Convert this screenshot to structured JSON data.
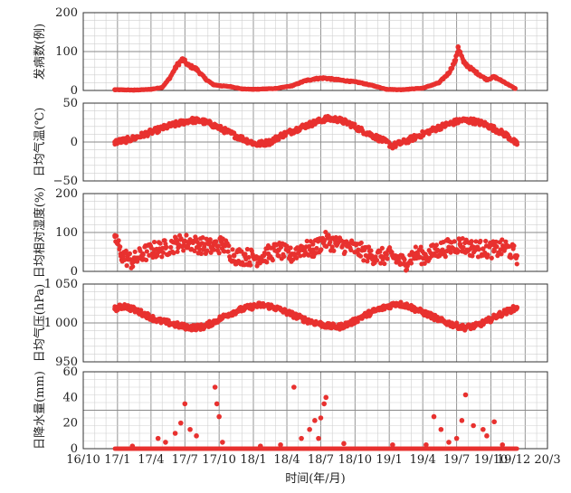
{
  "chart_data": {
    "type": "scatter",
    "xlabel": "时间(年/月)",
    "x_ticks": [
      "16/10",
      "17/1",
      "17/4",
      "17/7",
      "17/10",
      "18/1",
      "18/4",
      "18/7",
      "18/10",
      "19/1",
      "19/4",
      "19/7",
      "19/10",
      "19/12",
      "20/3"
    ],
    "xlim": [
      "2016-10-01",
      "2020-03-01"
    ],
    "point_color": "#e8312f",
    "grid": true,
    "panels": [
      {
        "ylabel": "发病数(例)",
        "ylim": [
          0,
          200
        ],
        "yticks": [
          "0",
          "100",
          "200"
        ],
        "ytick_values": [
          0,
          100,
          200
        ],
        "series": [
          {
            "x": [
              "2016-12-25",
              "2017-02-15",
              "2017-04-01",
              "2017-05-01",
              "2017-05-20",
              "2017-06-10",
              "2017-06-25",
              "2017-07-10",
              "2017-08-01",
              "2017-08-25",
              "2017-09-15",
              "2017-10-05",
              "2017-11-01",
              "2017-12-01",
              "2018-01-01",
              "2018-03-01",
              "2018-04-15",
              "2018-05-20",
              "2018-06-15",
              "2018-07-10",
              "2018-08-10",
              "2018-09-15",
              "2018-10-15",
              "2018-11-20",
              "2018-12-25",
              "2019-02-01",
              "2019-04-01",
              "2019-05-15",
              "2019-06-10",
              "2019-06-28",
              "2019-07-05",
              "2019-07-20",
              "2019-08-10",
              "2019-09-01",
              "2019-09-20",
              "2019-10-10",
              "2019-11-05",
              "2019-12-05"
            ],
            "y": [
              2,
              1,
              3,
              8,
              30,
              65,
              80,
              65,
              55,
              30,
              15,
              12,
              10,
              4,
              3,
              5,
              12,
              25,
              30,
              32,
              28,
              24,
              20,
              12,
              3,
              2,
              6,
              20,
              45,
              78,
              112,
              72,
              55,
              40,
              28,
              35,
              22,
              5
            ]
          }
        ]
      },
      {
        "ylabel": "日均气温(℃)",
        "ylim": [
          -50,
          50
        ],
        "yticks": [
          "50",
          "0",
          "−50"
        ],
        "ytick_values": [
          50,
          0,
          -50
        ],
        "series": [
          {
            "x": [
              "2016-12-25",
              "2017-01-20",
              "2017-02-15",
              "2017-03-15",
              "2017-04-15",
              "2017-05-15",
              "2017-06-15",
              "2017-07-15",
              "2017-08-15",
              "2017-09-15",
              "2017-10-15",
              "2017-11-15",
              "2017-12-15",
              "2018-01-10",
              "2018-02-15",
              "2018-03-15",
              "2018-04-15",
              "2018-05-15",
              "2018-06-15",
              "2018-07-15",
              "2018-08-15",
              "2018-09-15",
              "2018-10-15",
              "2018-11-15",
              "2018-12-15",
              "2019-01-10",
              "2019-02-15",
              "2019-03-15",
              "2019-04-15",
              "2019-05-15",
              "2019-06-15",
              "2019-07-15",
              "2019-08-15",
              "2019-09-15",
              "2019-10-15",
              "2019-11-15",
              "2019-12-10"
            ],
            "y": [
              0,
              2,
              5,
              10,
              15,
              20,
              24,
              28,
              27,
              22,
              15,
              8,
              2,
              -3,
              0,
              8,
              14,
              20,
              25,
              30,
              29,
              24,
              16,
              9,
              2,
              -5,
              1,
              7,
              13,
              19,
              24,
              28,
              27,
              23,
              16,
              8,
              -3
            ]
          }
        ]
      },
      {
        "ylabel": "日均相对湿度(%)",
        "ylim": [
          0,
          200
        ],
        "yticks": [
          "0",
          "100",
          "200"
        ],
        "ytick_values": [
          0,
          100,
          200
        ],
        "series": [
          {
            "x": [
              "2016-12-25",
              "2017-01-10",
              "2017-02-10",
              "2017-03-10",
              "2017-04-10",
              "2017-05-10",
              "2017-06-10",
              "2017-07-10",
              "2017-08-10",
              "2017-09-10",
              "2017-10-10",
              "2017-11-10",
              "2017-12-10",
              "2018-01-10",
              "2018-02-10",
              "2018-03-10",
              "2018-04-10",
              "2018-05-10",
              "2018-06-10",
              "2018-07-10",
              "2018-08-10",
              "2018-09-10",
              "2018-10-10",
              "2018-11-10",
              "2018-12-10",
              "2019-01-10",
              "2019-02-10",
              "2019-03-10",
              "2019-04-10",
              "2019-05-10",
              "2019-06-10",
              "2019-07-10",
              "2019-08-10",
              "2019-09-10",
              "2019-10-10",
              "2019-11-10",
              "2019-12-10"
            ],
            "y": [
              92,
              45,
              25,
              45,
              55,
              60,
              72,
              75,
              68,
              62,
              70,
              40,
              38,
              35,
              45,
              55,
              40,
              60,
              55,
              80,
              72,
              65,
              55,
              42,
              38,
              40,
              20,
              45,
              38,
              55,
              62,
              70,
              60,
              58,
              55,
              62,
              40
            ]
          }
        ]
      },
      {
        "ylabel": "日均气压(hPa)",
        "ylim": [
          950,
          1050
        ],
        "yticks": [
          "950",
          "1 000",
          "1 050"
        ],
        "ytick_values": [
          950,
          1000,
          1050
        ],
        "series": [
          {
            "x": [
              "2016-12-25",
              "2017-01-20",
              "2017-02-20",
              "2017-03-20",
              "2017-04-20",
              "2017-05-20",
              "2017-06-20",
              "2017-07-20",
              "2017-08-20",
              "2017-09-20",
              "2017-10-20",
              "2017-11-20",
              "2017-12-20",
              "2018-01-20",
              "2018-02-20",
              "2018-03-20",
              "2018-04-20",
              "2018-05-20",
              "2018-06-20",
              "2018-07-20",
              "2018-08-20",
              "2018-09-20",
              "2018-10-20",
              "2018-11-20",
              "2018-12-20",
              "2019-01-20",
              "2019-02-20",
              "2019-03-20",
              "2019-04-20",
              "2019-05-20",
              "2019-06-20",
              "2019-07-20",
              "2019-08-20",
              "2019-09-20",
              "2019-10-20",
              "2019-11-20",
              "2019-12-10"
            ],
            "y": [
              1018,
              1022,
              1016,
              1010,
              1003,
              1000,
              996,
              994,
              995,
              1002,
              1010,
              1016,
              1020,
              1023,
              1021,
              1016,
              1010,
              1004,
              1000,
              996,
              995,
              1000,
              1008,
              1015,
              1020,
              1025,
              1022,
              1016,
              1010,
              1003,
              998,
              994,
              996,
              1002,
              1010,
              1016,
              1020
            ]
          }
        ]
      },
      {
        "ylabel": "日降水量(mm)",
        "ylim": [
          0,
          60
        ],
        "yticks": [
          "0",
          "20",
          "40",
          "60"
        ],
        "ytick_values": [
          0,
          20,
          40,
          60
        ],
        "series": [
          {
            "x": [
              "2017-02-10",
              "2017-04-20",
              "2017-05-10",
              "2017-06-05",
              "2017-06-20",
              "2017-07-01",
              "2017-07-15",
              "2017-08-01",
              "2017-09-20",
              "2017-09-25",
              "2017-10-01",
              "2017-10-10",
              "2018-01-20",
              "2018-03-15",
              "2018-04-20",
              "2018-05-10",
              "2018-06-01",
              "2018-06-15",
              "2018-06-25",
              "2018-07-01",
              "2018-07-10",
              "2018-07-15",
              "2018-09-01",
              "2019-01-10",
              "2019-04-10",
              "2019-05-01",
              "2019-05-20",
              "2019-06-10",
              "2019-07-01",
              "2019-07-15",
              "2019-07-25",
              "2019-08-15",
              "2019-09-10",
              "2019-09-20",
              "2019-10-10",
              "2019-11-01"
            ],
            "y": [
              2,
              8,
              5,
              12,
              20,
              35,
              15,
              10,
              48,
              35,
              25,
              5,
              2,
              3,
              48,
              8,
              15,
              22,
              8,
              24,
              35,
              40,
              4,
              3,
              3,
              25,
              15,
              5,
              8,
              22,
              42,
              18,
              15,
              10,
              21,
              3
            ]
          }
        ]
      }
    ]
  }
}
